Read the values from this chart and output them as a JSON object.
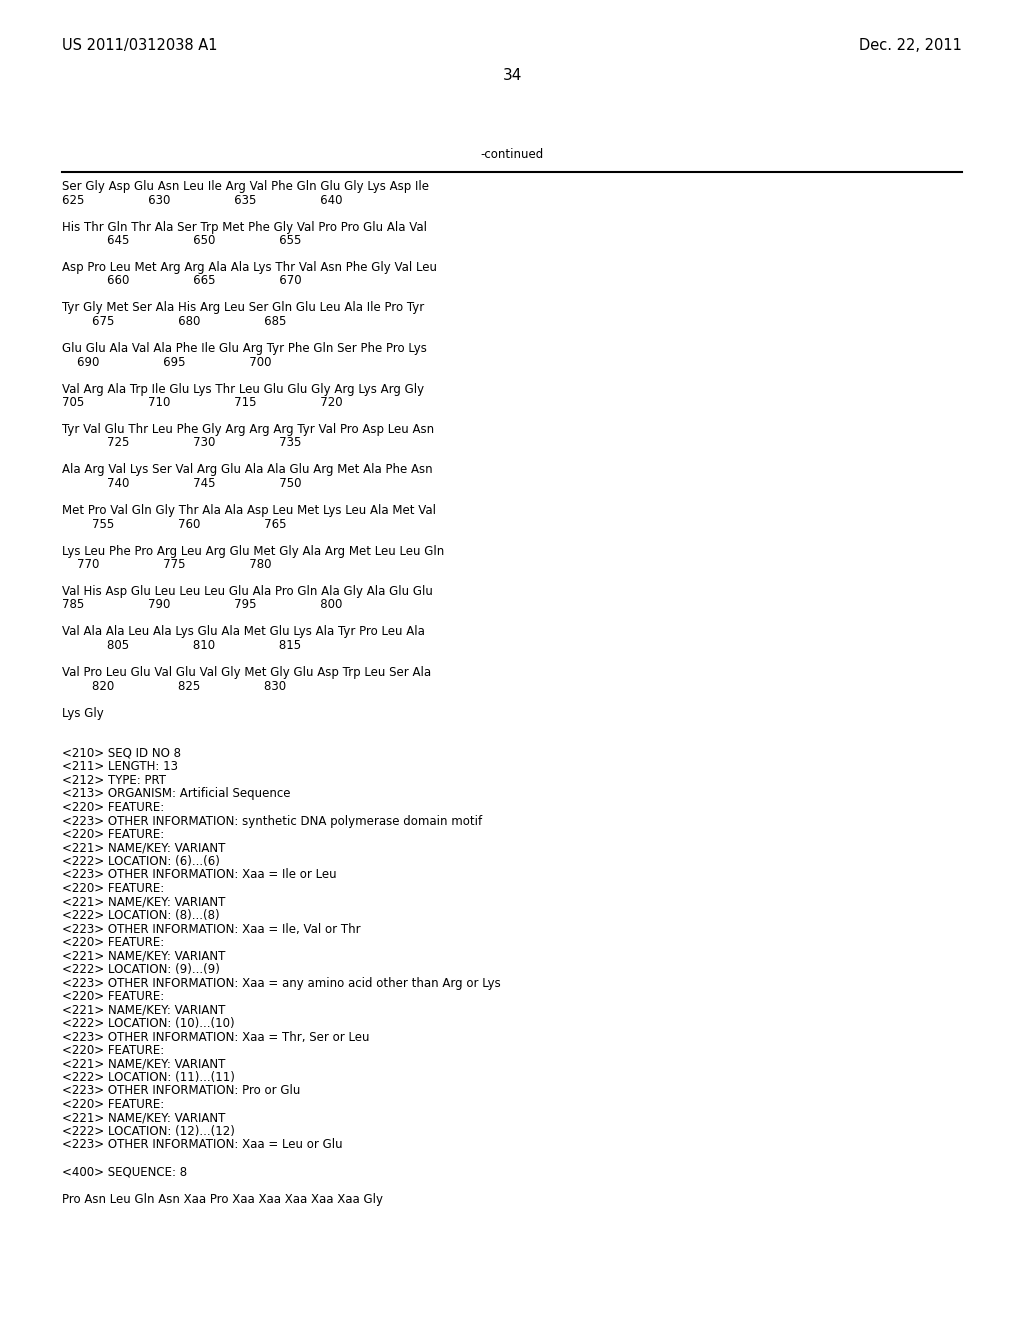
{
  "header_left": "US 2011/0312038 A1",
  "header_right": "Dec. 22, 2011",
  "page_number": "34",
  "continued_label": "-continued",
  "background_color": "#ffffff",
  "text_color": "#000000",
  "font_size": 8.5,
  "header_font_size": 10.5,
  "page_num_font_size": 11,
  "content_lines": [
    "Ser Gly Asp Glu Asn Leu Ile Arg Val Phe Gln Glu Gly Lys Asp Ile",
    "625                 630                 635                 640",
    "",
    "His Thr Gln Thr Ala Ser Trp Met Phe Gly Val Pro Pro Glu Ala Val",
    "            645                 650                 655",
    "",
    "Asp Pro Leu Met Arg Arg Ala Ala Lys Thr Val Asn Phe Gly Val Leu",
    "            660                 665                 670",
    "",
    "Tyr Gly Met Ser Ala His Arg Leu Ser Gln Glu Leu Ala Ile Pro Tyr",
    "        675                 680                 685",
    "",
    "Glu Glu Ala Val Ala Phe Ile Glu Arg Tyr Phe Gln Ser Phe Pro Lys",
    "    690                 695                 700",
    "",
    "Val Arg Ala Trp Ile Glu Lys Thr Leu Glu Glu Gly Arg Lys Arg Gly",
    "705                 710                 715                 720",
    "",
    "Tyr Val Glu Thr Leu Phe Gly Arg Arg Arg Tyr Val Pro Asp Leu Asn",
    "            725                 730                 735",
    "",
    "Ala Arg Val Lys Ser Val Arg Glu Ala Ala Glu Arg Met Ala Phe Asn",
    "            740                 745                 750",
    "",
    "Met Pro Val Gln Gly Thr Ala Ala Asp Leu Met Lys Leu Ala Met Val",
    "        755                 760                 765",
    "",
    "Lys Leu Phe Pro Arg Leu Arg Glu Met Gly Ala Arg Met Leu Leu Gln",
    "    770                 775                 780",
    "",
    "Val His Asp Glu Leu Leu Leu Glu Ala Pro Gln Ala Gly Ala Glu Glu",
    "785                 790                 795                 800",
    "",
    "Val Ala Ala Leu Ala Lys Glu Ala Met Glu Lys Ala Tyr Pro Leu Ala",
    "            805                 810                 815",
    "",
    "Val Pro Leu Glu Val Glu Val Gly Met Gly Glu Asp Trp Leu Ser Ala",
    "        820                 825                 830",
    "",
    "Lys Gly",
    "",
    "",
    "<210> SEQ ID NO 8",
    "<211> LENGTH: 13",
    "<212> TYPE: PRT",
    "<213> ORGANISM: Artificial Sequence",
    "<220> FEATURE:",
    "<223> OTHER INFORMATION: synthetic DNA polymerase domain motif",
    "<220> FEATURE:",
    "<221> NAME/KEY: VARIANT",
    "<222> LOCATION: (6)...(6)",
    "<223> OTHER INFORMATION: Xaa = Ile or Leu",
    "<220> FEATURE:",
    "<221> NAME/KEY: VARIANT",
    "<222> LOCATION: (8)...(8)",
    "<223> OTHER INFORMATION: Xaa = Ile, Val or Thr",
    "<220> FEATURE:",
    "<221> NAME/KEY: VARIANT",
    "<222> LOCATION: (9)...(9)",
    "<223> OTHER INFORMATION: Xaa = any amino acid other than Arg or Lys",
    "<220> FEATURE:",
    "<221> NAME/KEY: VARIANT",
    "<222> LOCATION: (10)...(10)",
    "<223> OTHER INFORMATION: Xaa = Thr, Ser or Leu",
    "<220> FEATURE:",
    "<221> NAME/KEY: VARIANT",
    "<222> LOCATION: (11)...(11)",
    "<223> OTHER INFORMATION: Pro or Glu",
    "<220> FEATURE:",
    "<221> NAME/KEY: VARIANT",
    "<222> LOCATION: (12)...(12)",
    "<223> OTHER INFORMATION: Xaa = Leu or Glu",
    "",
    "<400> SEQUENCE: 8",
    "",
    "Pro Asn Leu Gln Asn Xaa Pro Xaa Xaa Xaa Xaa Xaa Gly"
  ]
}
